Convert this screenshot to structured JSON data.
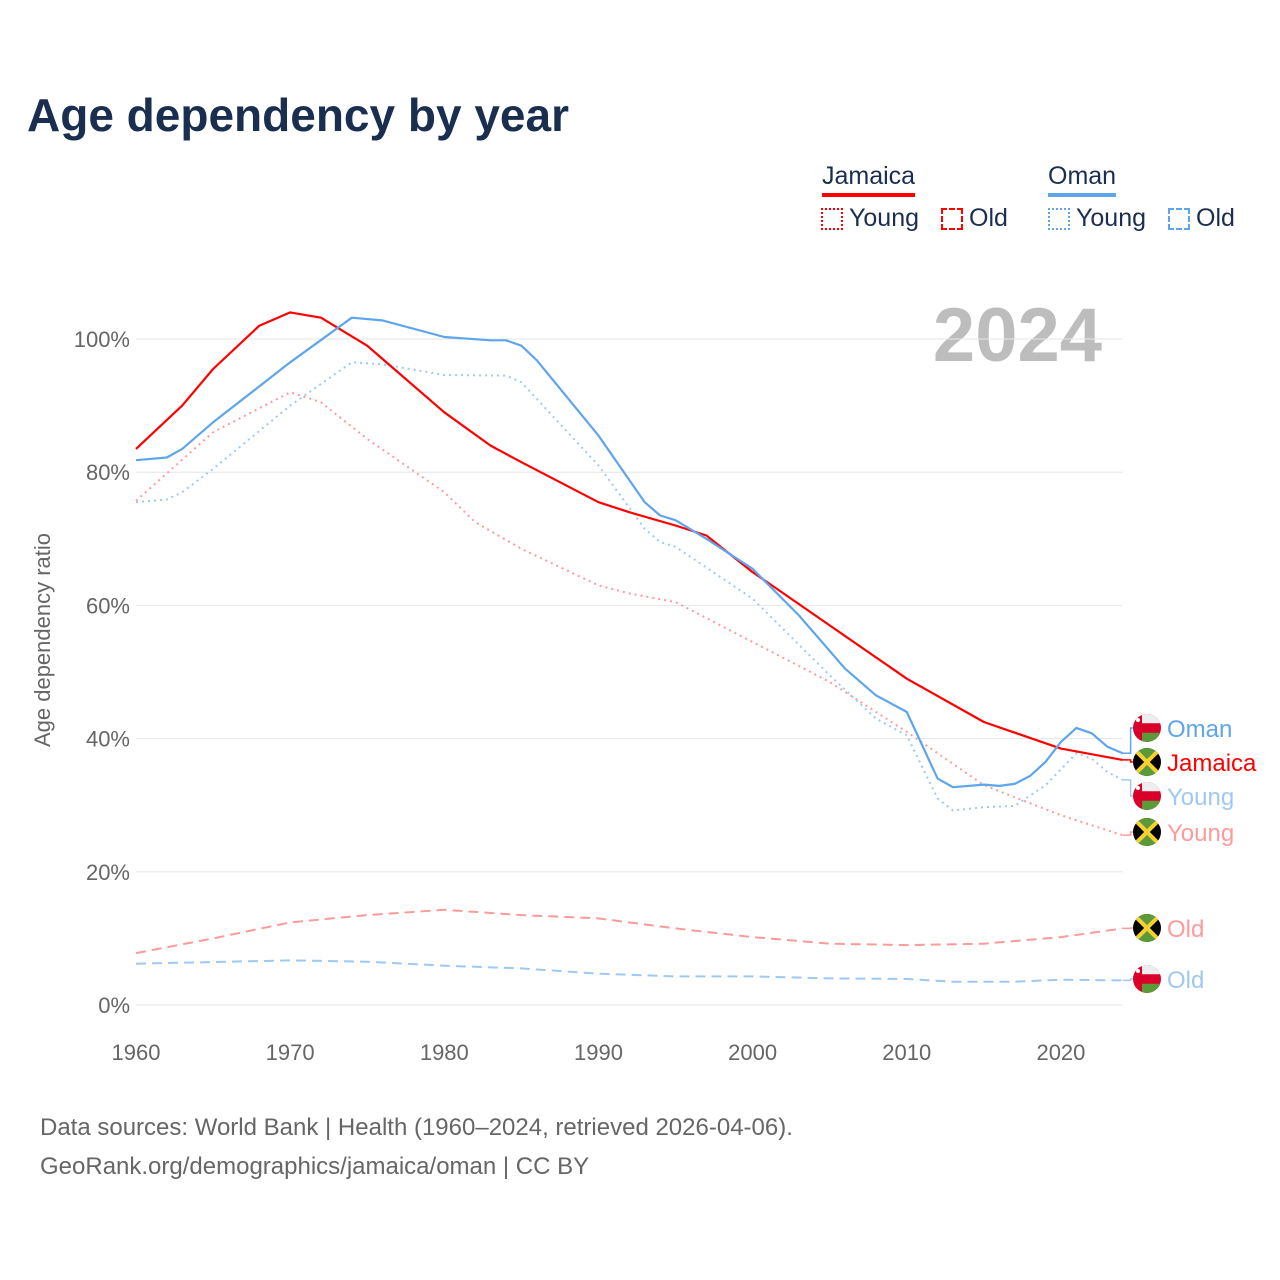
{
  "title": "Age dependency by year",
  "year_watermark": "2024",
  "legend": {
    "countries": [
      {
        "name": "Jamaica",
        "color": "#ff0000",
        "light_color": "#ff9a9a",
        "items": [
          "Young",
          "Old"
        ]
      },
      {
        "name": "Oman",
        "color": "#5ea5ec",
        "light_color": "#9fc9f2",
        "items": [
          "Young",
          "Old"
        ]
      }
    ]
  },
  "source": {
    "line1": "Data sources: World Bank | Health (1960–2024, retrieved 2026-04-06).",
    "line2": "GeoRank.org/demographics/jamaica/oman | CC BY"
  },
  "chart_data": {
    "type": "line",
    "title": "Age dependency by year",
    "xlabel": "",
    "ylabel": "Age dependency ratio",
    "xlim": [
      1960,
      2024
    ],
    "ylim": [
      0,
      105
    ],
    "x_ticks": [
      "1960",
      "1970",
      "1980",
      "1990",
      "2000",
      "2010",
      "2020"
    ],
    "y_ticks": [
      "0%",
      "20%",
      "40%",
      "60%",
      "80%",
      "100%"
    ],
    "grid": true,
    "series": [
      {
        "name": "Jamaica",
        "country": "Jamaica",
        "end_label": "Jamaica",
        "style": "solid",
        "color": "#ff0000",
        "x": [
          1960,
          1963,
          1965,
          1968,
          1970,
          1972,
          1975,
          1980,
          1983,
          1985,
          1990,
          1992,
          1995,
          1997,
          2000,
          2005,
          2010,
          2015,
          2020,
          2024
        ],
        "y": [
          83.5,
          90,
          95.5,
          102,
          104,
          103.2,
          99,
          89,
          84,
          81.5,
          75.5,
          74,
          72,
          70.5,
          65,
          57,
          49,
          42.5,
          38.5,
          36.8
        ]
      },
      {
        "name": "Jamaica Young",
        "country": "Jamaica",
        "end_label": "Young",
        "style": "dotted",
        "color": "#ff9a9a",
        "x": [
          1960,
          1965,
          1970,
          1972,
          1975,
          1980,
          1982,
          1985,
          1990,
          1992,
          1995,
          2000,
          2005,
          2010,
          2015,
          2020,
          2024
        ],
        "y": [
          75.7,
          86,
          92,
          90.5,
          85,
          77,
          72.5,
          68.5,
          63,
          61.8,
          60.5,
          54.5,
          48.5,
          41,
          33,
          28.5,
          25.5
        ]
      },
      {
        "name": "Jamaica Old",
        "country": "Jamaica",
        "end_label": "Old",
        "style": "dashed",
        "color": "#ff9a9a",
        "x": [
          1960,
          1965,
          1970,
          1975,
          1980,
          1985,
          1990,
          1995,
          2000,
          2005,
          2010,
          2015,
          2020,
          2024
        ],
        "y": [
          7.8,
          10,
          12.4,
          13.5,
          14.3,
          13.5,
          13,
          11.5,
          10.2,
          9.2,
          9,
          9.2,
          10.2,
          11.5
        ]
      },
      {
        "name": "Oman",
        "country": "Oman",
        "end_label": "Oman",
        "style": "solid",
        "color": "#5ea5ec",
        "x": [
          1960,
          1962,
          1963,
          1965,
          1970,
          1974,
          1976,
          1980,
          1983,
          1984,
          1985,
          1986,
          1990,
          1993,
          1994,
          1995,
          1997,
          2000,
          2003,
          2006,
          2008,
          2010,
          2012,
          2013,
          2015,
          2016,
          2017,
          2018,
          2019,
          2020,
          2021,
          2022,
          2023,
          2024
        ],
        "y": [
          81.8,
          82.2,
          83.5,
          87.5,
          96.5,
          103.2,
          102.8,
          100.3,
          99.8,
          99.8,
          99,
          96.8,
          85.5,
          75.5,
          73.5,
          72.8,
          70,
          65.5,
          58.5,
          50.5,
          46.5,
          44,
          34,
          32.7,
          33.1,
          32.9,
          33.2,
          34.4,
          36.5,
          39.5,
          41.6,
          40.8,
          38.8,
          37.8
        ]
      },
      {
        "name": "Oman Young",
        "country": "Oman",
        "end_label": "Young",
        "style": "dotted",
        "color": "#9fc9f2",
        "x": [
          1960,
          1962,
          1963,
          1965,
          1970,
          1974,
          1976,
          1980,
          1984,
          1985,
          1990,
          1993,
          1994,
          1995,
          2000,
          2005,
          2008,
          2010,
          2012,
          2013,
          2015,
          2017,
          2019,
          2021,
          2022,
          2023,
          2024
        ],
        "y": [
          75.5,
          75.9,
          77,
          80.5,
          90,
          96.5,
          96.2,
          94.6,
          94.5,
          93.5,
          81,
          71.5,
          69.5,
          68.8,
          61,
          49.5,
          43,
          40.5,
          31,
          29.2,
          29.7,
          29.9,
          33,
          37.8,
          37,
          35,
          33.8
        ]
      },
      {
        "name": "Oman Old",
        "country": "Oman",
        "end_label": "Old",
        "style": "dashed",
        "color": "#9fc9f2",
        "x": [
          1960,
          1970,
          1975,
          1980,
          1985,
          1990,
          1995,
          2000,
          2005,
          2010,
          2013,
          2017,
          2020,
          2024
        ],
        "y": [
          6.2,
          6.7,
          6.5,
          5.9,
          5.5,
          4.7,
          4.3,
          4.3,
          4.0,
          3.9,
          3.5,
          3.5,
          3.8,
          3.7
        ]
      }
    ]
  }
}
